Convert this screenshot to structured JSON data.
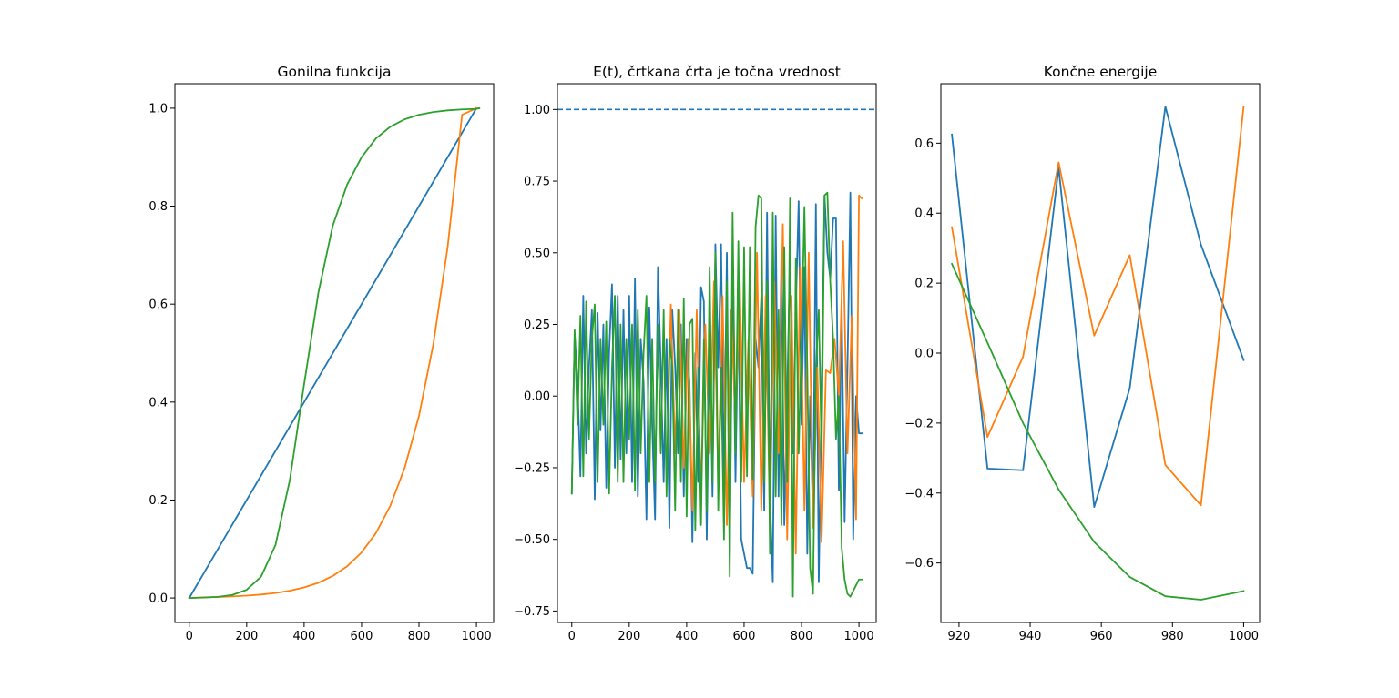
{
  "colors": {
    "c0": "#1f77b4",
    "c1": "#ff7f0e",
    "c2": "#2ca02c"
  },
  "chart_data": [
    {
      "type": "line",
      "title": "Gonilna funkcija",
      "xlabel": "",
      "ylabel": "",
      "xlim": [
        -50,
        1060
      ],
      "ylim": [
        -0.05,
        1.05
      ],
      "xticks": [
        0,
        200,
        400,
        600,
        800,
        1000
      ],
      "yticks": [
        0.0,
        0.2,
        0.4,
        0.6,
        0.8,
        1.0
      ],
      "xtick_labels": [
        "0",
        "200",
        "400",
        "600",
        "800",
        "1000"
      ],
      "ytick_labels": [
        "0.0",
        "0.2",
        "0.4",
        "0.6",
        "0.8",
        "1.0"
      ],
      "grid": false,
      "series": [
        {
          "color": "#1f77b4",
          "x": [
            0,
            1000
          ],
          "y": [
            0.0,
            1.0
          ]
        },
        {
          "color": "#ff7f0e",
          "x": [
            0,
            50,
            100,
            150,
            200,
            250,
            300,
            350,
            400,
            450,
            500,
            550,
            600,
            650,
            700,
            750,
            800,
            850,
            900,
            950,
            1000,
            1010
          ],
          "y": [
            0.0,
            0.0013,
            0.0021,
            0.0032,
            0.0048,
            0.007,
            0.0102,
            0.0148,
            0.0215,
            0.0311,
            0.045,
            0.0648,
            0.0929,
            0.1325,
            0.1881,
            0.2654,
            0.3721,
            0.5184,
            0.7175,
            0.9866,
            1.0,
            1.0
          ]
        },
        {
          "color": "#2ca02c",
          "x": [
            0,
            50,
            100,
            150,
            200,
            250,
            300,
            350,
            400,
            450,
            500,
            550,
            600,
            650,
            700,
            750,
            800,
            850,
            900,
            950,
            1000,
            1010
          ],
          "y": [
            0.0,
            0.0009,
            0.0023,
            0.0062,
            0.0167,
            0.0434,
            0.1076,
            0.2402,
            0.4365,
            0.6243,
            0.7608,
            0.8443,
            0.8998,
            0.9381,
            0.9621,
            0.9773,
            0.9866,
            0.9922,
            0.9955,
            0.9975,
            0.9986,
            1.0
          ]
        }
      ]
    },
    {
      "type": "line",
      "title": "E(t), črtkana črta je točna vrednost",
      "xlabel": "",
      "ylabel": "",
      "xlim": [
        -50,
        1060
      ],
      "ylim": [
        -0.79,
        1.09
      ],
      "xticks": [
        0,
        200,
        400,
        600,
        800,
        1000
      ],
      "yticks": [
        -0.75,
        -0.5,
        -0.25,
        0.0,
        0.25,
        0.5,
        0.75,
        1.0
      ],
      "xtick_labels": [
        "0",
        "200",
        "400",
        "600",
        "800",
        "1000"
      ],
      "ytick_labels": [
        "−0.75",
        "−0.50",
        "−0.25",
        "0.00",
        "0.25",
        "0.50",
        "0.75",
        "1.00"
      ],
      "grid": false,
      "reference_line": {
        "y": 1.0,
        "style": "dashed",
        "color": "#1f77b4"
      },
      "series": [
        {
          "color": "#1f77b4",
          "x": [
            0,
            10,
            20,
            30,
            40,
            50,
            60,
            70,
            80,
            90,
            100,
            110,
            120,
            130,
            140,
            150,
            160,
            170,
            180,
            190,
            200,
            210,
            220,
            230,
            240,
            250,
            260,
            270,
            280,
            290,
            300,
            310,
            320,
            330,
            340,
            350,
            360,
            370,
            380,
            390,
            400,
            410,
            420,
            430,
            440,
            450,
            460,
            470,
            480,
            490,
            500,
            510,
            520,
            530,
            540,
            550,
            560,
            570,
            580,
            590,
            600,
            610,
            620,
            630,
            640,
            650,
            660,
            670,
            680,
            690,
            700,
            710,
            720,
            730,
            740,
            750,
            760,
            770,
            780,
            790,
            800,
            810,
            820,
            830,
            840,
            850,
            860,
            870,
            880,
            890,
            900,
            910,
            920,
            930,
            940,
            950,
            960,
            970,
            980,
            990,
            1000,
            1010
          ],
          "y": [
            -0.34,
            0.22,
            0.05,
            -0.28,
            0.35,
            -0.2,
            0.1,
            0.3,
            -0.36,
            0.29,
            -0.12,
            0.25,
            -0.32,
            0.15,
            0.39,
            -0.25,
            0.35,
            -0.22,
            0.3,
            -0.2,
            0.35,
            -0.3,
            0.41,
            -0.35,
            0.2,
            0.05,
            -0.43,
            0.31,
            -0.1,
            -0.43,
            0.45,
            0.1,
            -0.3,
            0.2,
            -0.46,
            0.3,
            0.1,
            -0.2,
            0.25,
            -0.35,
            0.2,
            0.05,
            -0.51,
            0.15,
            -0.3,
            0.38,
            0.33,
            -0.5,
            0.21,
            -0.35,
            0.53,
            0.1,
            0.53,
            -0.3,
            0.5,
            -0.55,
            0.47,
            -0.3,
            0.35,
            -0.5,
            -0.55,
            -0.6,
            -0.6,
            -0.62,
            0.2,
            0.1,
            0.35,
            -0.4,
            0.64,
            -0.35,
            -0.65,
            0.63,
            -0.35,
            0.5,
            -0.45,
            0.0,
            0.5,
            -0.2,
            0.3,
            0.68,
            -0.1,
            0.45,
            -0.55,
            0.0,
            -0.44,
            0.67,
            -0.65,
            0.0,
            0.7,
            0.5,
            0.41,
            0.62,
            0.62,
            -0.33,
            0.3,
            -0.44,
            0.1,
            0.71,
            -0.5,
            0.0,
            -0.13,
            -0.13
          ]
        },
        {
          "color": "#ff7f0e",
          "x": [
            330,
            345,
            360,
            375,
            390,
            405,
            420,
            435,
            450,
            465,
            480,
            495,
            510,
            525,
            540,
            555,
            570,
            585,
            600,
            615,
            630,
            645,
            660,
            675,
            690,
            705,
            720,
            735,
            750,
            765,
            780,
            795,
            810,
            825,
            840,
            855,
            870,
            885,
            900,
            915,
            930,
            945,
            960,
            975,
            990,
            1000,
            1010
          ],
          "y": [
            -0.3,
            0.32,
            -0.2,
            0.3,
            -0.25,
            0.2,
            -0.4,
            0.3,
            -0.35,
            0.25,
            -0.2,
            0.4,
            -0.3,
            0.35,
            -0.45,
            0.3,
            -0.1,
            0.4,
            -0.3,
            0.2,
            -0.35,
            0.5,
            -0.4,
            0.35,
            -0.45,
            0.4,
            -0.2,
            0.6,
            -0.5,
            0.35,
            -0.55,
            0.45,
            -0.4,
            0.5,
            -0.46,
            0.1,
            -0.51,
            0.09,
            0.08,
            0.2,
            0.0,
            0.54,
            -0.2,
            0.28,
            -0.43,
            0.7,
            0.69
          ]
        },
        {
          "color": "#2ca02c",
          "x": [
            0,
            10,
            20,
            30,
            40,
            50,
            60,
            70,
            80,
            90,
            100,
            110,
            120,
            130,
            140,
            150,
            160,
            170,
            180,
            190,
            200,
            210,
            220,
            230,
            240,
            250,
            260,
            270,
            280,
            290,
            300,
            310,
            320,
            330,
            340,
            350,
            360,
            370,
            380,
            390,
            400,
            410,
            420,
            430,
            440,
            450,
            460,
            470,
            480,
            490,
            500,
            510,
            520,
            530,
            540,
            550,
            560,
            570,
            580,
            590,
            600,
            610,
            620,
            630,
            640,
            650,
            660,
            670,
            680,
            690,
            700,
            710,
            720,
            730,
            740,
            750,
            760,
            770,
            780,
            790,
            800,
            810,
            820,
            830,
            840,
            850,
            860,
            870,
            880,
            890,
            900,
            910,
            920,
            930,
            940,
            950,
            960,
            970,
            980,
            990,
            1000,
            1010
          ],
          "y": [
            -0.34,
            0.23,
            -0.1,
            0.28,
            -0.28,
            0.33,
            -0.15,
            0.2,
            0.32,
            -0.3,
            0.2,
            -0.1,
            0.26,
            -0.34,
            0.1,
            0.35,
            -0.3,
            0.25,
            -0.3,
            0.2,
            -0.15,
            0.25,
            -0.33,
            0.3,
            -0.2,
            0.15,
            0.35,
            -0.3,
            0.2,
            -0.3,
            0.25,
            -0.2,
            0.3,
            -0.35,
            0.2,
            0.1,
            -0.4,
            0.3,
            -0.3,
            0.34,
            -0.42,
            0.25,
            0.27,
            -0.47,
            0.1,
            -0.45,
            0.2,
            -0.4,
            0.45,
            -0.3,
            0.5,
            -0.4,
            0.1,
            -0.5,
            0.4,
            -0.63,
            0.64,
            -0.2,
            0.54,
            -0.3,
            0.52,
            -0.28,
            0.52,
            -0.29,
            0.59,
            0.7,
            0.69,
            -0.3,
            0.4,
            -0.55,
            0.64,
            -0.35,
            0.3,
            -0.45,
            0.52,
            -0.3,
            0.69,
            -0.7,
            0.48,
            -0.2,
            0.2,
            0.66,
            0.1,
            -0.6,
            -0.69,
            0.1,
            0.3,
            -0.2,
            0.7,
            0.71,
            0.4,
            0.2,
            -0.15,
            0.0,
            -0.53,
            -0.64,
            -0.69,
            -0.7,
            -0.68,
            -0.66,
            -0.64,
            -0.64
          ]
        }
      ]
    },
    {
      "type": "line",
      "title": "Končne energije",
      "xlabel": "",
      "ylabel": "",
      "xlim": [
        914.9,
        1004.5
      ],
      "ylim": [
        -0.77,
        0.77
      ],
      "xticks": [
        920,
        940,
        960,
        980,
        1000
      ],
      "yticks": [
        -0.6,
        -0.4,
        -0.2,
        0.0,
        0.2,
        0.4,
        0.6
      ],
      "xtick_labels": [
        "920",
        "940",
        "960",
        "980",
        "1000"
      ],
      "ytick_labels": [
        "−0.6",
        "−0.4",
        "−0.2",
        "0.0",
        "0.2",
        "0.4",
        "0.6"
      ],
      "grid": false,
      "series": [
        {
          "color": "#1f77b4",
          "x": [
            918,
            928,
            938,
            948,
            958,
            968,
            978,
            988,
            1000
          ],
          "y": [
            0.625,
            -0.33,
            -0.335,
            0.53,
            -0.44,
            -0.1,
            0.705,
            0.31,
            -0.02
          ]
        },
        {
          "color": "#ff7f0e",
          "x": [
            918,
            928,
            938,
            948,
            958,
            968,
            978,
            988,
            1000
          ],
          "y": [
            0.36,
            -0.24,
            -0.01,
            0.545,
            0.05,
            0.28,
            -0.32,
            -0.435,
            0.705
          ]
        },
        {
          "color": "#2ca02c",
          "x": [
            918,
            928,
            938,
            948,
            958,
            968,
            978,
            988,
            1000
          ],
          "y": [
            0.255,
            0.03,
            -0.2,
            -0.39,
            -0.54,
            -0.64,
            -0.695,
            -0.705,
            -0.68
          ]
        }
      ]
    }
  ]
}
